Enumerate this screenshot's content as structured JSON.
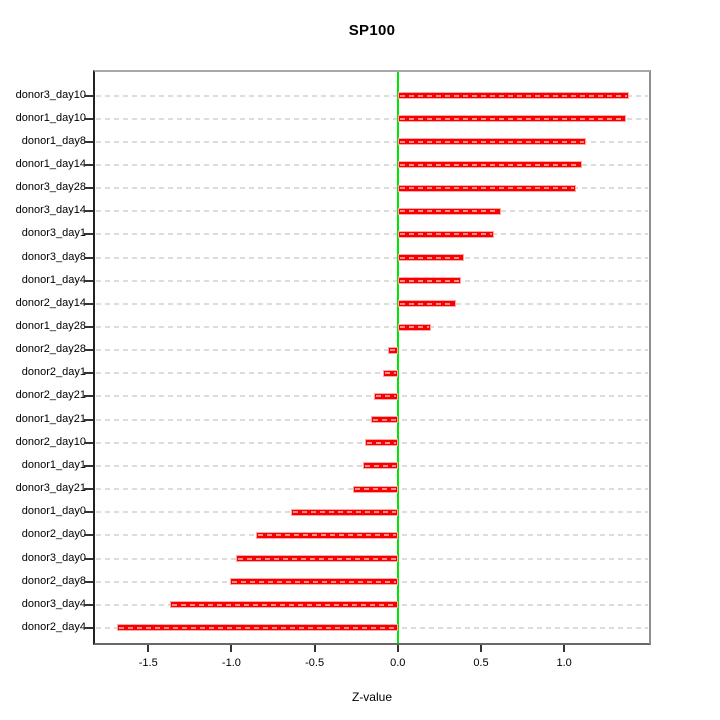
{
  "chart_data": {
    "type": "bar",
    "orientation": "horizontal",
    "title": "SP100",
    "xlabel": "Z-value",
    "categories": [
      "donor3_day10",
      "donor1_day10",
      "donor1_day8",
      "donor1_day14",
      "donor3_day28",
      "donor3_day14",
      "donor3_day1",
      "donor3_day8",
      "donor1_day4",
      "donor2_day14",
      "donor1_day28",
      "donor2_day28",
      "donor2_day1",
      "donor2_day21",
      "donor1_day21",
      "donor2_day10",
      "donor1_day1",
      "donor3_day21",
      "donor1_day0",
      "donor2_day0",
      "donor3_day0",
      "donor2_day8",
      "donor3_day4",
      "donor2_day4"
    ],
    "values": [
      1.39,
      1.37,
      1.13,
      1.11,
      1.07,
      0.62,
      0.58,
      0.4,
      0.38,
      0.35,
      0.2,
      -0.06,
      -0.09,
      -0.14,
      -0.16,
      -0.2,
      -0.21,
      -0.27,
      -0.64,
      -0.85,
      -0.97,
      -1.01,
      -1.37,
      -1.69
    ],
    "xlim": [
      -1.82,
      1.51
    ],
    "x_ticks": [
      -1.5,
      -1.0,
      -0.5,
      0.0,
      0.5,
      1.0
    ],
    "x_tick_labels": [
      "-1.5",
      "-1.0",
      "-0.5",
      "0.0",
      "0.5",
      "1.0"
    ],
    "grid": "horizontal dashed line per category",
    "legend": "none",
    "zero_line": true,
    "colors": {
      "bar": "#ff0000",
      "bar_edge": "#ffa6a6",
      "zero_line": "#00e600",
      "grid": "#dcdcdc",
      "text": "#000000"
    }
  }
}
